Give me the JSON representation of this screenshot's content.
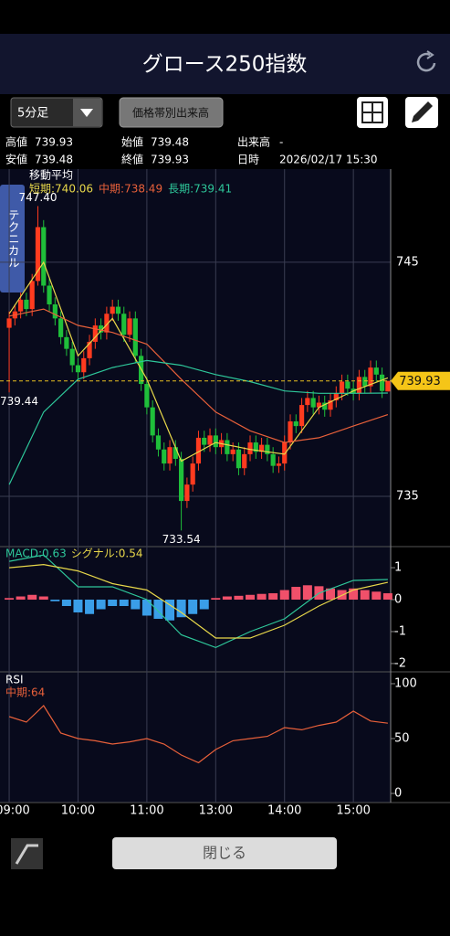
{
  "header": {
    "title": "グロース250指数"
  },
  "toolbar": {
    "period": "5分足",
    "volume_button": "価格帯別出来高",
    "tab": "テクニカル"
  },
  "info": {
    "rows": [
      [
        "高値",
        "739.93",
        "始値",
        "739.48",
        "出来高",
        "-"
      ],
      [
        "安値",
        "739.48",
        "終値",
        "739.93",
        "日時",
        "2026/02/17 15:30"
      ]
    ]
  },
  "footer": {
    "close_button": "閉じる"
  },
  "chart_data": [
    {
      "type": "candlestick",
      "title": "移動平均",
      "up_color": "#ff3b1f",
      "down_color": "#1fbf3a",
      "open": [
        742.2,
        742.6,
        742.9,
        743.4,
        743.0,
        744.2,
        746.5,
        744.0,
        743.2,
        742.6,
        741.8,
        741.3,
        740.6,
        740.3,
        740.9,
        741.6,
        742.3,
        742.0,
        742.8,
        743.1,
        742.8,
        741.9,
        742.6,
        741.0,
        739.8,
        738.8,
        737.6,
        737.0,
        736.4,
        737.1,
        736.6,
        734.8,
        735.5,
        736.4,
        737.5,
        737.2,
        737.6,
        737.1,
        737.4,
        736.8,
        737.0,
        736.2,
        736.8,
        737.3,
        736.9,
        737.2,
        736.8,
        736.3,
        736.4,
        737.3,
        738.2,
        738.0,
        738.9,
        739.2,
        738.8,
        739.0,
        738.7,
        739.1,
        739.4,
        739.9,
        739.6,
        739.4,
        740.1,
        739.7,
        740.5,
        740.2,
        739.48
      ],
      "high": [
        742.9,
        743.2,
        743.7,
        743.7,
        744.5,
        747.4,
        746.8,
        744.3,
        743.5,
        742.9,
        742.1,
        741.6,
        740.9,
        741.2,
        741.9,
        742.6,
        742.6,
        743.1,
        743.4,
        743.4,
        743.1,
        742.9,
        742.9,
        741.3,
        740.1,
        739.1,
        737.9,
        737.3,
        737.4,
        737.4,
        736.9,
        735.8,
        736.7,
        737.8,
        737.8,
        737.9,
        737.9,
        737.7,
        737.7,
        737.3,
        737.3,
        737.1,
        737.6,
        737.6,
        737.5,
        737.5,
        737.1,
        736.7,
        737.6,
        738.5,
        738.5,
        739.2,
        739.5,
        739.5,
        739.3,
        739.3,
        739.4,
        739.7,
        740.2,
        740.2,
        739.9,
        740.4,
        740.4,
        740.8,
        740.8,
        740.5,
        739.93
      ],
      "low": [
        739.44,
        742.3,
        742.6,
        742.7,
        742.7,
        744.0,
        743.7,
        742.9,
        742.3,
        741.5,
        741.0,
        740.3,
        740.0,
        740.0,
        740.6,
        741.3,
        741.7,
        741.7,
        742.5,
        742.5,
        741.6,
        741.6,
        740.7,
        739.5,
        738.5,
        737.3,
        736.7,
        736.1,
        736.1,
        736.3,
        733.54,
        734.5,
        735.2,
        736.1,
        736.9,
        736.9,
        736.8,
        736.8,
        736.5,
        736.5,
        735.9,
        735.9,
        736.5,
        736.6,
        736.6,
        736.5,
        736.0,
        736.0,
        736.1,
        737.0,
        737.7,
        737.7,
        738.6,
        738.5,
        738.5,
        738.4,
        738.4,
        738.8,
        739.1,
        739.3,
        739.1,
        739.1,
        739.4,
        739.4,
        739.9,
        739.2,
        739.48
      ],
      "close": [
        742.6,
        742.9,
        743.4,
        743.0,
        744.2,
        746.5,
        744.0,
        743.2,
        742.6,
        741.8,
        741.3,
        740.6,
        740.3,
        740.9,
        741.6,
        742.3,
        742.0,
        742.8,
        743.1,
        742.8,
        741.9,
        742.6,
        741.0,
        739.8,
        738.8,
        737.6,
        737.0,
        736.4,
        737.1,
        736.6,
        734.8,
        735.5,
        736.4,
        737.5,
        737.2,
        737.6,
        737.1,
        737.4,
        736.8,
        737.0,
        736.2,
        736.8,
        737.3,
        736.9,
        737.2,
        736.8,
        736.3,
        736.4,
        737.3,
        738.2,
        738.0,
        738.9,
        739.2,
        738.8,
        739.0,
        738.7,
        739.1,
        739.4,
        739.9,
        739.6,
        739.4,
        740.1,
        739.7,
        740.5,
        740.2,
        739.5,
        739.93
      ],
      "series": [
        {
          "name": "短期:740.06",
          "color": "#e8d84a",
          "x": [
            0,
            6,
            12,
            18,
            24,
            30,
            36,
            42,
            48,
            54,
            60,
            66
          ],
          "values": [
            742.8,
            745.0,
            741.0,
            742.6,
            740.0,
            736.5,
            737.3,
            737.0,
            736.8,
            738.8,
            739.5,
            740.06
          ]
        },
        {
          "name": "中期:738.49",
          "color": "#e8603a",
          "x": [
            0,
            6,
            12,
            18,
            24,
            30,
            36,
            42,
            48,
            54,
            60,
            66
          ],
          "values": [
            742.7,
            743.0,
            742.3,
            742.0,
            741.5,
            740.0,
            738.6,
            737.8,
            737.3,
            737.5,
            738.0,
            738.49
          ]
        },
        {
          "name": "長期:739.41",
          "color": "#2ec79a",
          "x": [
            0,
            6,
            12,
            18,
            24,
            30,
            36,
            42,
            48,
            54,
            60,
            66
          ],
          "values": [
            735.5,
            738.6,
            740.0,
            740.5,
            740.8,
            740.6,
            740.2,
            739.9,
            739.5,
            739.4,
            739.4,
            739.41
          ]
        }
      ],
      "annotations": [
        {
          "value": 747.4,
          "label": "747.40"
        },
        {
          "value": 733.54,
          "label": "733.54"
        },
        {
          "value": 739.44,
          "label": "739.44"
        }
      ],
      "xlim": [
        -1.6,
        66.5
      ],
      "xticks": [
        {
          "value": 0,
          "label": "09:00"
        },
        {
          "value": 12,
          "label": "10:00"
        },
        {
          "value": 24,
          "label": "11:00"
        },
        {
          "value": 36,
          "label": "13:00"
        },
        {
          "value": 48,
          "label": "14:00"
        },
        {
          "value": 60,
          "label": "15:00"
        }
      ],
      "ylim": [
        732.85,
        748.98
      ],
      "yticks": [
        735,
        745
      ],
      "grid": true
    },
    {
      "type": "macd",
      "series": [
        {
          "name": "MACD:0.63",
          "color": "#2ec79a",
          "x": [
            0,
            6,
            12,
            18,
            24,
            30,
            36,
            42,
            48,
            54,
            60,
            66
          ],
          "values": [
            1.2,
            1.4,
            0.4,
            0.4,
            0.0,
            -1.1,
            -1.5,
            -1.0,
            -0.6,
            0.2,
            0.6,
            0.63
          ]
        },
        {
          "name": "シグナル:0.54",
          "color": "#e8d84a",
          "x": [
            0,
            6,
            12,
            18,
            24,
            30,
            36,
            42,
            48,
            54,
            60,
            66
          ],
          "values": [
            1.0,
            1.1,
            0.9,
            0.5,
            0.3,
            -0.4,
            -1.2,
            -1.2,
            -0.8,
            -0.2,
            0.3,
            0.54
          ]
        }
      ],
      "histogram": {
        "pos_color": "#f0506a",
        "neg_color": "#3a9ee8",
        "x": [
          0,
          2,
          4,
          6,
          8,
          10,
          12,
          14,
          16,
          18,
          20,
          22,
          24,
          26,
          28,
          30,
          32,
          34,
          36,
          38,
          40,
          42,
          44,
          46,
          48,
          50,
          52,
          54,
          56,
          58,
          60,
          62,
          64,
          66
        ],
        "values": [
          0.05,
          0.1,
          0.15,
          0.1,
          -0.05,
          -0.2,
          -0.4,
          -0.45,
          -0.3,
          -0.2,
          -0.2,
          -0.3,
          -0.5,
          -0.6,
          -0.65,
          -0.55,
          -0.45,
          -0.3,
          0.05,
          0.1,
          0.12,
          0.15,
          0.18,
          0.2,
          0.3,
          0.4,
          0.45,
          0.42,
          0.35,
          0.3,
          0.35,
          0.3,
          0.25,
          0.2
        ]
      },
      "ylim": [
        -2.26,
        1.66
      ],
      "yticks": [
        1,
        0,
        -1,
        -2
      ]
    },
    {
      "type": "line",
      "title": "RSI",
      "series": [
        {
          "name": "中期:64",
          "color": "#e8603a",
          "x": [
            0,
            3,
            6,
            9,
            12,
            15,
            18,
            21,
            24,
            27,
            30,
            33,
            36,
            39,
            42,
            45,
            48,
            51,
            54,
            57,
            60,
            63,
            66
          ],
          "values": [
            70,
            65,
            80,
            55,
            50,
            48,
            45,
            47,
            50,
            45,
            35,
            28,
            40,
            48,
            50,
            52,
            60,
            58,
            62,
            65,
            75,
            66,
            64
          ]
        }
      ],
      "ylim": [
        -8.3,
        110.8
      ],
      "yticks": [
        100,
        50,
        0
      ]
    }
  ]
}
